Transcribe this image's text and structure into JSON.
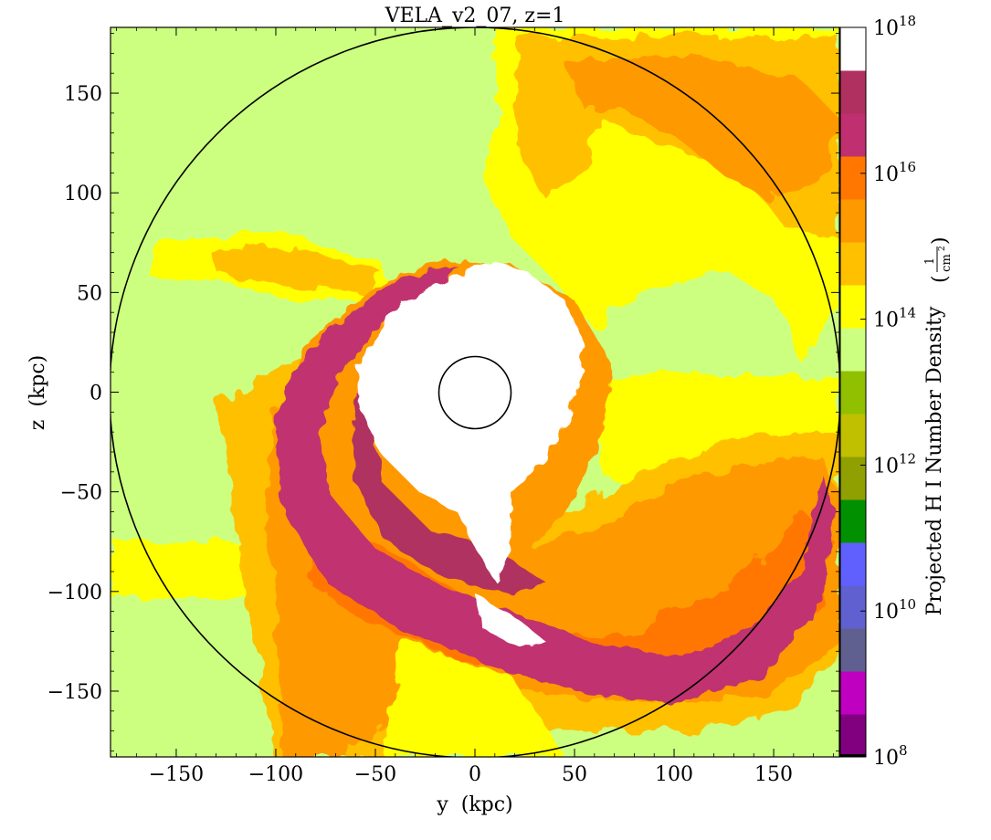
{
  "chart_data": {
    "type": "heatmap",
    "title": "VELA_v2_07, z=1",
    "xlabel": "y  (kpc)",
    "ylabel": "z  (kpc)",
    "xlim": [
      -183,
      183
    ],
    "ylim": [
      -183,
      183
    ],
    "x_ticks": [
      -150,
      -100,
      -50,
      0,
      50,
      100,
      150
    ],
    "x_tick_labels": [
      "−150",
      "−100",
      "−50",
      "0",
      "50",
      "100",
      "150"
    ],
    "y_ticks": [
      150,
      100,
      50,
      0,
      -50,
      -100,
      -150
    ],
    "y_tick_labels": [
      "150",
      "100",
      "50",
      "0",
      "−50",
      "−100",
      "−150"
    ],
    "colorbar": {
      "label_main": "Projected H I Number Density",
      "label_unit_num": "1",
      "label_unit_den": "cm",
      "label_unit_den_exp": "2",
      "scale": "log",
      "range": [
        100000000.0,
        1e+18
      ],
      "tick_base": "10",
      "tick_exponents": [
        "18",
        "16",
        "14",
        "12",
        "10",
        "8"
      ],
      "colors_low_to_high": [
        "#800080",
        "#c000c0",
        "#606090",
        "#6060d0",
        "#6060ff",
        "#009000",
        "#90a000",
        "#c0c000",
        "#90c000",
        "#ccff80",
        "#ffff00",
        "#ffc000",
        "#ff9900",
        "#ff7700",
        "#c03070",
        "#b03060",
        "#ffffff"
      ]
    },
    "circles": [
      {
        "name": "outer-virial-radius",
        "center": [
          0,
          0
        ],
        "radius_kpc": 183
      },
      {
        "name": "inner-galaxy-radius",
        "center": [
          0,
          0
        ],
        "radius_kpc": 18
      }
    ],
    "density_regions": [
      {
        "name": "background-low",
        "color": "#ccff80"
      },
      {
        "name": "upper-right-yellow-filament",
        "color": "#ffff00"
      },
      {
        "name": "upper-right-orange-filament",
        "color": "#ffc000"
      },
      {
        "name": "lower-left-yellow-band",
        "color": "#ffff00"
      },
      {
        "name": "right-yellow-slab",
        "color": "#ffff00"
      },
      {
        "name": "lower-orange-tail",
        "color": "#ff9900"
      },
      {
        "name": "magenta-spiral-arms",
        "color": "#c03070"
      },
      {
        "name": "white-saturated-core",
        "color": "#ffffff"
      }
    ]
  }
}
